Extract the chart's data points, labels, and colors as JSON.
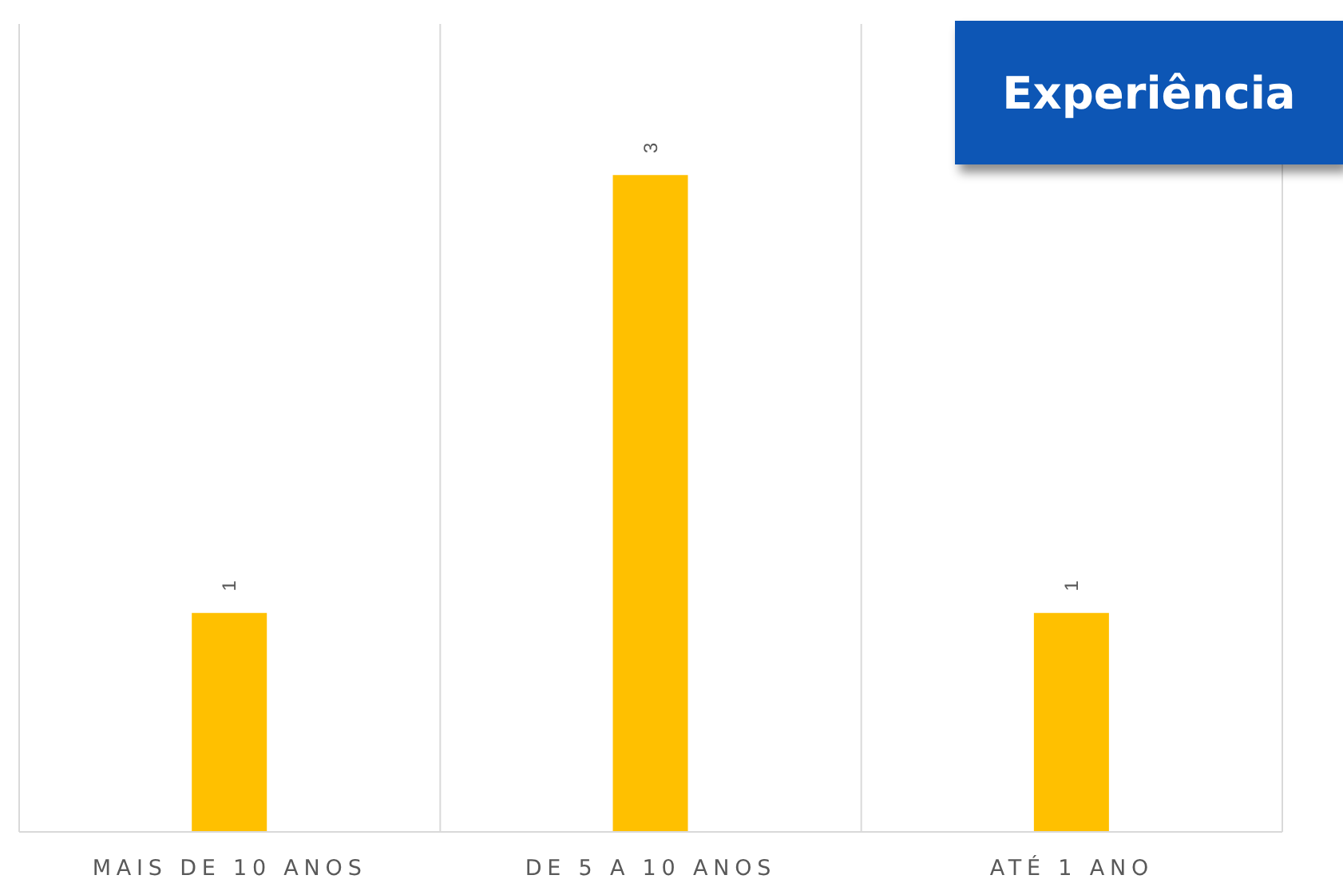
{
  "chart_data": {
    "type": "bar",
    "title": "Experiência",
    "categories": [
      "MAIS DE 10 ANOS",
      "DE 5 A 10 ANOS",
      "ATÉ 1 ANO"
    ],
    "values": [
      1,
      3,
      1
    ],
    "color": "#ffc000",
    "data_labels": true,
    "grid": "x",
    "tick_labels": "x"
  }
}
